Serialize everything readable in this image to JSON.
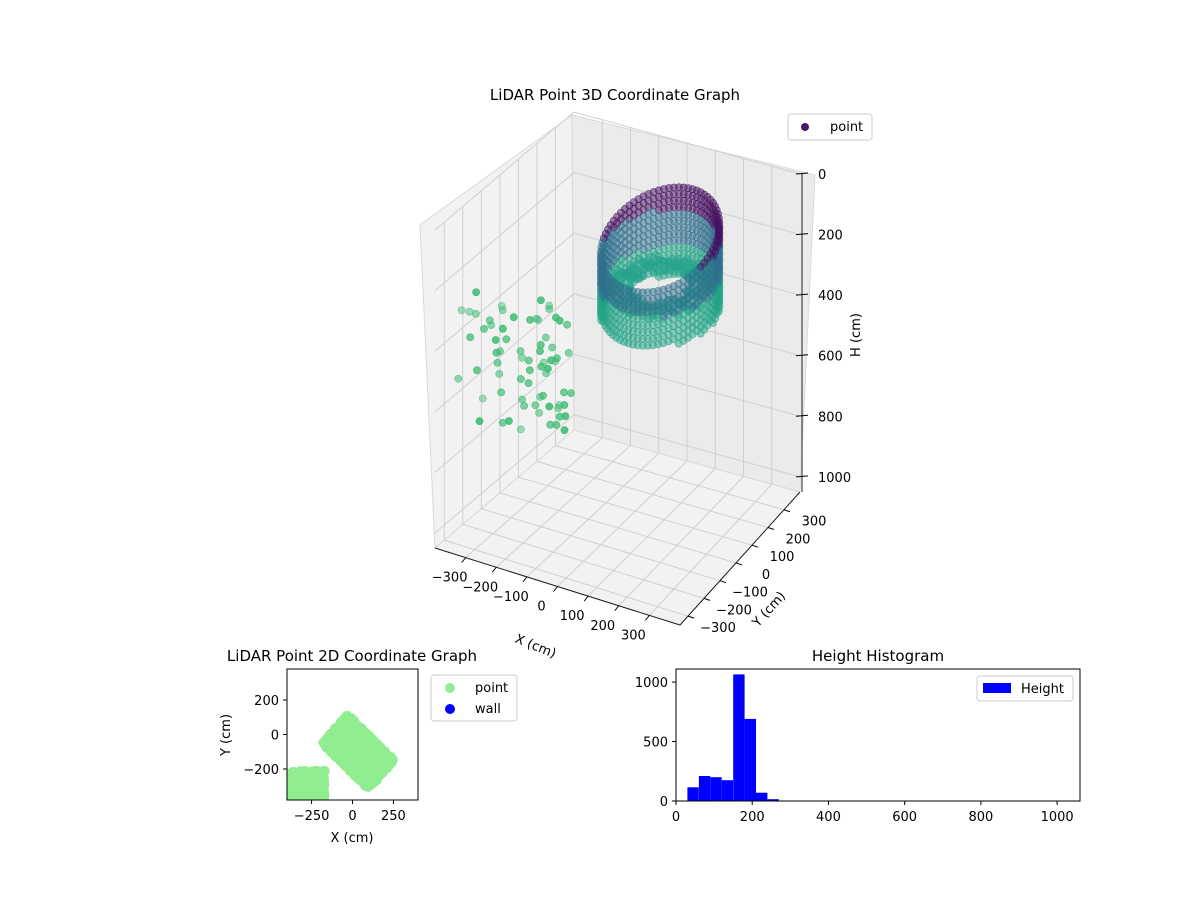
{
  "figure": {
    "background": "#ffffff"
  },
  "chart_data": [
    {
      "type": "scatter",
      "projection": "3d",
      "title": "LiDAR Point 3D Coordinate Graph",
      "xlabel": "X (cm)",
      "ylabel": "Y (cm)",
      "zlabel": "H (cm)",
      "xlim": [
        -400,
        400
      ],
      "ylim": [
        -350,
        400
      ],
      "zlim": [
        1050,
        0
      ],
      "xticks": [
        "−300",
        "−200",
        "−100",
        "0",
        "100",
        "200",
        "300"
      ],
      "yticks": [
        "−300",
        "−200",
        "−100",
        "0",
        "100",
        "200",
        "300"
      ],
      "zticks": [
        "0",
        "200",
        "400",
        "600",
        "800",
        "1000"
      ],
      "grid": true,
      "legend": {
        "position": "top-right",
        "entries": [
          {
            "name": "point",
            "color": "#46186b"
          }
        ]
      },
      "colormap": "viridis",
      "point_groups": [
        {
          "label": "outer cylinder-like scan, far side",
          "x_range": [
            60,
            270
          ],
          "y_range": [
            120,
            300
          ],
          "h_range": [
            20,
            140
          ],
          "color": "#440b57"
        },
        {
          "label": "outer scan, sides",
          "x_range": [
            -60,
            280
          ],
          "y_range": [
            -80,
            320
          ],
          "h_range": [
            130,
            270
          ],
          "color": "#2b7b8e"
        },
        {
          "label": "outer scan, near bottom ring",
          "x_range": [
            -20,
            280
          ],
          "y_range": [
            -240,
            20
          ],
          "h_range": [
            250,
            360
          ],
          "color": "#22a088"
        },
        {
          "label": "ground / floor points",
          "x_range": [
            -380,
            -40
          ],
          "y_range": [
            -300,
            -150
          ],
          "h_range": [
            250,
            660
          ],
          "color": "#3fbc73"
        }
      ]
    },
    {
      "type": "scatter",
      "title": "LiDAR Point 2D Coordinate Graph",
      "xlabel": "X (cm)",
      "ylabel": "Y (cm)",
      "xlim": [
        -400,
        400
      ],
      "ylim": [
        -380,
        380
      ],
      "xticks": [
        "−250",
        "0",
        "250"
      ],
      "yticks": [
        "200",
        "0",
        "−200"
      ],
      "legend": {
        "position": "outside-right",
        "entries": [
          {
            "name": "point",
            "color": "#90ee90"
          },
          {
            "name": "wall",
            "color": "#0000ff"
          }
        ]
      },
      "series": [
        {
          "name": "point",
          "color": "#90ee90",
          "x_range": [
            -390,
            280
          ],
          "y_range": [
            -380,
            190
          ]
        },
        {
          "name": "wall",
          "color": "#0000ff",
          "points": []
        }
      ]
    },
    {
      "type": "bar",
      "subtype": "histogram",
      "title": "Height Histogram",
      "xlabel": "",
      "ylabel": "",
      "xlim": [
        0,
        1060
      ],
      "ylim": [
        0,
        1110
      ],
      "xticks": [
        "0",
        "200",
        "400",
        "600",
        "800",
        "1000"
      ],
      "yticks": [
        "0",
        "500",
        "1000"
      ],
      "legend": {
        "position": "top-right",
        "entries": [
          {
            "name": "Height",
            "color": "#0000ff"
          }
        ]
      },
      "color": "#0000ff",
      "bins": [
        {
          "from": 30,
          "to": 60,
          "count": 115
        },
        {
          "from": 60,
          "to": 90,
          "count": 210
        },
        {
          "from": 90,
          "to": 120,
          "count": 200
        },
        {
          "from": 120,
          "to": 150,
          "count": 175
        },
        {
          "from": 150,
          "to": 180,
          "count": 1065
        },
        {
          "from": 180,
          "to": 210,
          "count": 690
        },
        {
          "from": 210,
          "to": 240,
          "count": 70
        },
        {
          "from": 240,
          "to": 270,
          "count": 15
        }
      ]
    }
  ]
}
